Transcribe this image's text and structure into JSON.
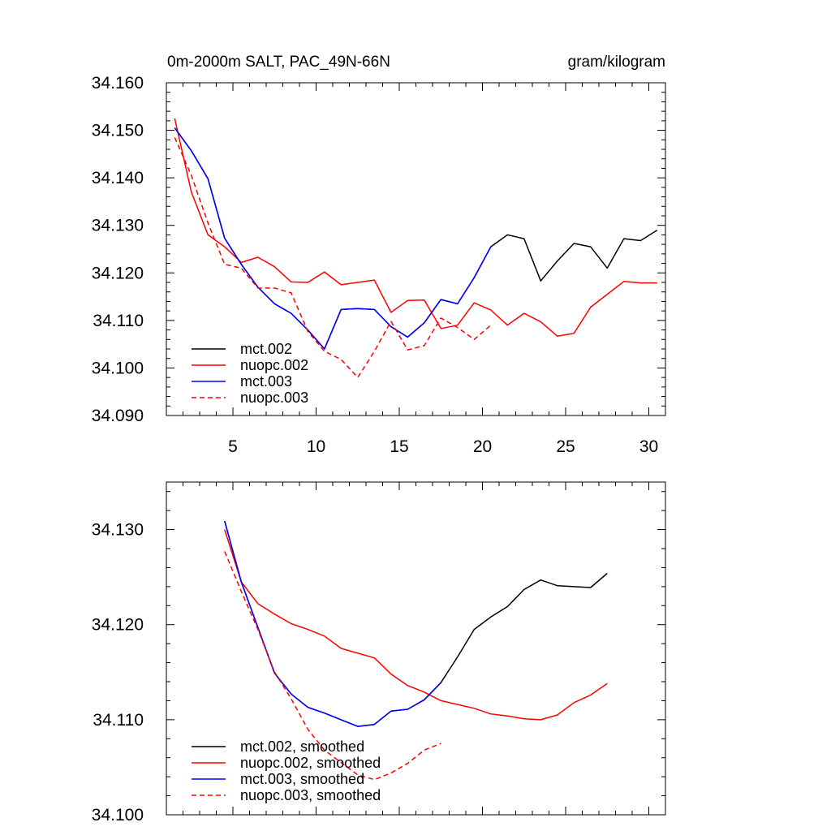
{
  "chart_data": [
    {
      "type": "line",
      "title_left": "0m-2000m SALT, PAC_49N-66N",
      "title_right": "gram/kilogram",
      "xlim": [
        1,
        31
      ],
      "ylim": [
        34.09,
        34.16
      ],
      "x_ticks": [
        5,
        10,
        15,
        20,
        25,
        30
      ],
      "x_tick_labels": [
        "5",
        "10",
        "15",
        "20",
        "25",
        "30"
      ],
      "y_ticks": [
        34.09,
        34.1,
        34.11,
        34.12,
        34.13,
        34.14,
        34.15,
        34.16
      ],
      "y_tick_labels": [
        "34.090",
        "34.100",
        "34.110",
        "34.120",
        "34.130",
        "34.140",
        "34.150",
        "34.160"
      ],
      "legend_placement": "bottom-left",
      "series": [
        {
          "name": "mct.002",
          "color": "#000000",
          "dash": "solid",
          "x": [
            1.5,
            2.5,
            3.5,
            4.5,
            5.5,
            6.5,
            7.5,
            8.5,
            9.5,
            10.5,
            11.5,
            12.5,
            13.5,
            14.5,
            15.5,
            16.5,
            17.5,
            18.5,
            19.5,
            20.5,
            21.5,
            22.5,
            23.5,
            24.5,
            25.5,
            26.5,
            27.5,
            28.5,
            29.5,
            30.5
          ],
          "values": [
            34.1505,
            34.1457,
            34.1398,
            34.1273,
            34.1218,
            34.117,
            34.1135,
            34.1115,
            34.108,
            34.104,
            34.1123,
            34.1125,
            34.1123,
            34.1087,
            34.1065,
            34.1095,
            34.1144,
            34.1135,
            34.119,
            34.1255,
            34.128,
            34.1272,
            34.1183,
            34.1225,
            34.1262,
            34.1255,
            34.121,
            34.1272,
            34.1268,
            34.129
          ]
        },
        {
          "name": "nuopc.002",
          "color": "#ff0000",
          "dash": "solid",
          "x": [
            1.5,
            2.5,
            3.5,
            4.5,
            5.5,
            6.5,
            7.5,
            8.5,
            9.5,
            10.5,
            11.5,
            12.5,
            13.5,
            14.5,
            15.5,
            16.5,
            17.5,
            18.5,
            19.5,
            20.5,
            21.5,
            22.5,
            23.5,
            24.5,
            25.5,
            26.5,
            27.5,
            28.5,
            29.5,
            30.5
          ],
          "values": [
            34.1525,
            34.137,
            34.128,
            34.1255,
            34.1222,
            34.1233,
            34.1213,
            34.1181,
            34.118,
            34.1202,
            34.1175,
            34.118,
            34.1185,
            34.1117,
            34.1142,
            34.1143,
            34.1083,
            34.109,
            34.1137,
            34.1122,
            34.109,
            34.1115,
            34.1097,
            34.1067,
            34.1073,
            34.1128,
            34.1155,
            34.1182,
            34.1179,
            34.1179
          ]
        },
        {
          "name": "mct.003",
          "color": "#0000ff",
          "dash": "solid",
          "x": [
            1.5,
            2.5,
            3.5,
            4.5,
            5.5,
            6.5,
            7.5,
            8.5,
            9.5,
            10.5,
            11.5,
            12.5,
            13.5,
            14.5,
            15.5,
            16.5,
            17.5,
            18.5,
            19.5,
            20.5
          ],
          "values": [
            34.1505,
            34.1457,
            34.1398,
            34.1273,
            34.1218,
            34.117,
            34.1135,
            34.1115,
            34.108,
            34.104,
            34.1123,
            34.1125,
            34.1123,
            34.1087,
            34.1065,
            34.1095,
            34.1144,
            34.1135,
            34.119,
            34.1255
          ]
        },
        {
          "name": "nuopc.003",
          "color": "#ff0000",
          "dash": "dashed",
          "x": [
            1.5,
            2.5,
            3.5,
            4.5,
            5.5,
            6.5,
            7.5,
            8.5,
            9.5,
            10.5,
            11.5,
            12.5,
            13.5,
            14.5,
            15.5,
            16.5,
            17.5,
            18.5,
            19.5,
            20.5
          ],
          "values": [
            34.1485,
            34.1405,
            34.1305,
            34.1218,
            34.121,
            34.1168,
            34.1168,
            34.1158,
            34.1077,
            34.1035,
            34.1018,
            34.098,
            34.1035,
            34.1098,
            34.1038,
            34.1047,
            34.1105,
            34.1085,
            34.106,
            34.109
          ]
        }
      ]
    },
    {
      "type": "line",
      "xlim": [
        1,
        31
      ],
      "ylim": [
        34.1,
        34.135
      ],
      "x_ticks": [
        5,
        10,
        15,
        20,
        25,
        30
      ],
      "y_ticks": [
        34.1,
        34.11,
        34.12,
        34.13
      ],
      "y_tick_labels": [
        "34.100",
        "34.110",
        "34.120",
        "34.130"
      ],
      "legend_placement": "bottom-left",
      "series": [
        {
          "name": "mct.002, smoothed",
          "color": "#000000",
          "dash": "solid",
          "x": [
            4.5,
            5.5,
            6.5,
            7.5,
            8.5,
            9.5,
            10.5,
            11.5,
            12.5,
            13.5,
            14.5,
            15.5,
            16.5,
            17.5,
            18.5,
            19.5,
            20.5,
            21.5,
            22.5,
            23.5,
            24.5,
            25.5,
            26.5,
            27.5
          ],
          "values": [
            34.1309,
            34.1245,
            34.1197,
            34.1149,
            34.1127,
            34.1113,
            34.1107,
            34.11,
            34.1093,
            34.1095,
            34.1109,
            34.1111,
            34.1121,
            34.1139,
            34.1166,
            34.1195,
            34.1208,
            34.1219,
            34.1237,
            34.1247,
            34.1241,
            34.124,
            34.1239,
            34.1254
          ]
        },
        {
          "name": "nuopc.002, smoothed",
          "color": "#ff0000",
          "dash": "solid",
          "x": [
            4.5,
            5.5,
            6.5,
            7.5,
            8.5,
            9.5,
            10.5,
            11.5,
            12.5,
            13.5,
            14.5,
            15.5,
            16.5,
            17.5,
            18.5,
            19.5,
            20.5,
            21.5,
            22.5,
            23.5,
            24.5,
            25.5,
            26.5,
            27.5
          ],
          "values": [
            34.13,
            34.1245,
            34.1222,
            34.1211,
            34.1201,
            34.1195,
            34.1188,
            34.1175,
            34.117,
            34.1165,
            34.1148,
            34.1136,
            34.1129,
            34.112,
            34.1116,
            34.1112,
            34.1106,
            34.1104,
            34.1101,
            34.11,
            34.1105,
            34.1118,
            34.1126,
            34.1138
          ]
        },
        {
          "name": "mct.003, smoothed",
          "color": "#0000ff",
          "dash": "solid",
          "x": [
            4.5,
            5.5,
            6.5,
            7.5,
            8.5,
            9.5,
            10.5,
            11.5,
            12.5,
            13.5,
            14.5,
            15.5,
            16.5,
            17.5
          ],
          "values": [
            34.1309,
            34.1245,
            34.1197,
            34.1149,
            34.1127,
            34.1113,
            34.1107,
            34.11,
            34.1093,
            34.1095,
            34.1109,
            34.1111,
            34.1121,
            34.1139
          ]
        },
        {
          "name": "nuopc.003, smoothed",
          "color": "#ff0000",
          "dash": "dashed",
          "x": [
            4.5,
            5.5,
            6.5,
            7.5,
            8.5,
            9.5,
            10.5,
            11.5,
            12.5,
            13.5,
            14.5,
            15.5,
            16.5,
            17.5
          ],
          "values": [
            34.1277,
            34.1235,
            34.1195,
            34.115,
            34.1122,
            34.109,
            34.1068,
            34.1055,
            34.1042,
            34.1037,
            34.1044,
            34.1054,
            34.1068,
            34.1075
          ]
        }
      ]
    }
  ]
}
